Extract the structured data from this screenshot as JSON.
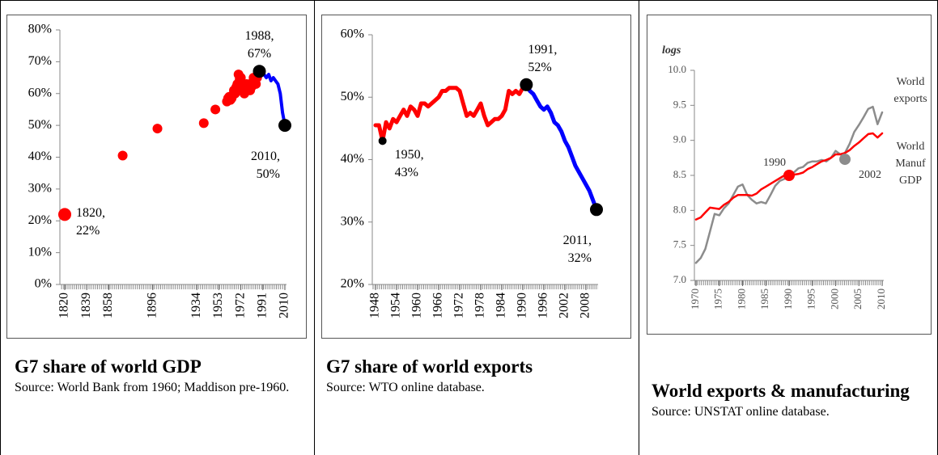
{
  "chart_data": [
    {
      "type": "scatter",
      "title": "G7 share of world GDP",
      "source": "Source: World Bank from 1960; Maddison pre-1960.",
      "xlim": [
        1820,
        2010
      ],
      "xticks": [
        1820,
        1839,
        1858,
        1896,
        1934,
        1953,
        1972,
        1991,
        2010
      ],
      "ylim": [
        0,
        80
      ],
      "yticks": [
        {
          "value": 0,
          "label": "0%"
        },
        {
          "value": 10,
          "label": "10%"
        },
        {
          "value": 20,
          "label": "20%"
        },
        {
          "value": 30,
          "label": "30%"
        },
        {
          "value": 40,
          "label": "40%"
        },
        {
          "value": 50,
          "label": "50%"
        },
        {
          "value": 60,
          "label": "60%"
        },
        {
          "value": 70,
          "label": "70%"
        },
        {
          "value": 80,
          "label": "80%"
        }
      ],
      "series": [
        {
          "type": "points",
          "color": "#ff0000",
          "x": [
            1820,
            1870,
            1900,
            1940,
            1950,
            1960,
            1961,
            1962,
            1963,
            1964,
            1965,
            1966,
            1967,
            1968,
            1969,
            1970,
            1971,
            1972,
            1973,
            1974,
            1975,
            1976,
            1977,
            1978,
            1979,
            1980,
            1981,
            1982,
            1983,
            1984,
            1985,
            1986,
            1987
          ],
          "values": [
            22,
            40.5,
            49,
            50.7,
            55,
            57.5,
            58.5,
            59,
            58,
            58.5,
            59.5,
            61,
            60,
            62,
            63,
            66,
            64.5,
            65,
            62,
            61,
            60,
            62,
            63,
            61,
            62,
            61,
            62,
            63.5,
            65,
            64,
            63,
            65,
            66
          ]
        },
        {
          "type": "line",
          "color": "#0000ff",
          "x": [
            1988,
            1990,
            1992,
            1994,
            1996,
            1998,
            2000,
            2002,
            2004,
            2006,
            2007,
            2008,
            2009,
            2010
          ],
          "values": [
            67,
            66,
            66,
            65,
            66,
            64,
            65,
            64,
            63,
            60,
            57,
            54,
            52,
            50
          ]
        }
      ],
      "highlights": [
        {
          "x": 1820,
          "y": 22,
          "color": "#ff0000",
          "label": "1820,\n22%",
          "label_pos": "right"
        },
        {
          "x": 1988,
          "y": 67,
          "color": "#000000",
          "label": "1988,\n67%",
          "label_pos": "above"
        },
        {
          "x": 2010,
          "y": 50,
          "color": "#000000",
          "label": "2010,\n50%",
          "label_pos": "below-left"
        }
      ]
    },
    {
      "type": "line",
      "title": "G7 share of world exports",
      "source": "Source: WTO online database.",
      "xlim": [
        1948,
        2011
      ],
      "xticks": [
        1948,
        1954,
        1960,
        1966,
        1972,
        1978,
        1984,
        1990,
        1996,
        2002,
        2008
      ],
      "ylim": [
        20,
        60
      ],
      "yticks": [
        {
          "value": 20,
          "label": "20%"
        },
        {
          "value": 30,
          "label": "30%"
        },
        {
          "value": 40,
          "label": "40%"
        },
        {
          "value": 50,
          "label": "50%"
        },
        {
          "value": 60,
          "label": "60%"
        }
      ],
      "series": [
        {
          "type": "line",
          "color": "#ff0000",
          "x": [
            1948,
            1949,
            1950,
            1951,
            1952,
            1953,
            1954,
            1955,
            1956,
            1957,
            1958,
            1959,
            1960,
            1961,
            1962,
            1963,
            1964,
            1965,
            1966,
            1967,
            1968,
            1969,
            1970,
            1971,
            1972,
            1973,
            1974,
            1975,
            1976,
            1977,
            1978,
            1979,
            1980,
            1981,
            1982,
            1983,
            1984,
            1985,
            1986,
            1987,
            1988,
            1989,
            1990,
            1991
          ],
          "values": [
            45.5,
            45.5,
            43,
            46,
            45,
            46.5,
            46,
            47,
            48,
            47,
            48.5,
            48,
            47,
            49,
            49,
            48.5,
            49,
            49.5,
            50,
            51,
            51,
            51.5,
            51.5,
            51.5,
            51,
            49,
            47,
            47.5,
            47,
            48,
            49,
            47,
            45.5,
            46,
            46.5,
            46.5,
            47,
            48,
            51,
            50.5,
            51,
            50.5,
            51.5,
            52
          ]
        },
        {
          "type": "line",
          "color": "#0000ff",
          "x": [
            1991,
            1992,
            1993,
            1994,
            1995,
            1996,
            1997,
            1998,
            1999,
            2000,
            2001,
            2002,
            2003,
            2004,
            2005,
            2006,
            2007,
            2008,
            2009,
            2010,
            2011
          ],
          "values": [
            52,
            51,
            50.5,
            49.5,
            48.5,
            48,
            48.5,
            47.5,
            46,
            45.5,
            44.5,
            43,
            42,
            40.5,
            39,
            38,
            37,
            36,
            35,
            33.5,
            32
          ]
        }
      ],
      "highlights": [
        {
          "x": 1950,
          "y": 43,
          "color": "#000000",
          "label": "1950,\n43%",
          "label_pos": "right-below"
        },
        {
          "x": 1991,
          "y": 52,
          "color": "#000000",
          "label": "1991,\n52%",
          "label_pos": "right-above"
        },
        {
          "x": 2011,
          "y": 32,
          "color": "#000000",
          "label": "2011,\n32%",
          "label_pos": "below-left"
        }
      ]
    },
    {
      "type": "line",
      "title": "World exports & manufacturing",
      "source": "Source: UNSTAT online database.",
      "y_label": "logs",
      "xlim": [
        1970,
        2010
      ],
      "xticks": [
        1970,
        1975,
        1980,
        1985,
        1990,
        1995,
        2000,
        2005,
        2010
      ],
      "ylim": [
        7,
        10
      ],
      "yticks": [
        {
          "value": 7,
          "label": "7.0"
        },
        7.5,
        {
          "value": 8,
          "label": "8.0"
        },
        8.5,
        {
          "value": 9,
          "label": "9.0"
        },
        9.5,
        {
          "value": 10,
          "label": "10.0"
        }
      ],
      "series": [
        {
          "type": "line",
          "name": "World exports",
          "color": "#8c8c8c",
          "x": [
            1970,
            1971,
            1972,
            1973,
            1974,
            1975,
            1976,
            1977,
            1978,
            1979,
            1980,
            1981,
            1982,
            1983,
            1984,
            1985,
            1986,
            1987,
            1988,
            1989,
            1990,
            1991,
            1992,
            1993,
            1994,
            1995,
            1996,
            1997,
            1998,
            1999,
            2000,
            2001,
            2002,
            2003,
            2004,
            2005,
            2006,
            2007,
            2008,
            2009,
            2010
          ],
          "values": [
            7.25,
            7.32,
            7.45,
            7.7,
            7.95,
            7.93,
            8.03,
            8.1,
            8.22,
            8.34,
            8.37,
            8.22,
            8.15,
            8.1,
            8.12,
            8.1,
            8.22,
            8.35,
            8.42,
            8.45,
            8.52,
            8.54,
            8.6,
            8.62,
            8.68,
            8.7,
            8.7,
            8.72,
            8.7,
            8.75,
            8.85,
            8.8,
            8.82,
            8.95,
            9.12,
            9.22,
            9.33,
            9.45,
            9.48,
            9.23,
            9.4
          ]
        },
        {
          "type": "line",
          "name": "World Manuf GDP",
          "color": "#ff0000",
          "x": [
            1970,
            1971,
            1972,
            1973,
            1974,
            1975,
            1976,
            1977,
            1978,
            1979,
            1980,
            1981,
            1982,
            1983,
            1984,
            1985,
            1986,
            1987,
            1988,
            1989,
            1990,
            1991,
            1992,
            1993,
            1994,
            1995,
            1996,
            1997,
            1998,
            1999,
            2000,
            2001,
            2002,
            2003,
            2004,
            2005,
            2006,
            2007,
            2008,
            2009,
            2010
          ],
          "values": [
            7.87,
            7.9,
            7.97,
            8.04,
            8.03,
            8.02,
            8.08,
            8.12,
            8.18,
            8.22,
            8.22,
            8.22,
            8.21,
            8.24,
            8.3,
            8.34,
            8.38,
            8.42,
            8.46,
            8.5,
            8.5,
            8.51,
            8.52,
            8.54,
            8.59,
            8.62,
            8.66,
            8.7,
            8.72,
            8.75,
            8.8,
            8.8,
            8.82,
            8.86,
            8.92,
            8.97,
            9.03,
            9.09,
            9.1,
            9.04,
            9.1
          ]
        }
      ],
      "highlights": [
        {
          "x": 1990,
          "y": 8.5,
          "color": "#ff0000",
          "label": "1990",
          "label_pos": "left-above"
        },
        {
          "x": 2002,
          "y": 8.73,
          "color": "#8c8c8c",
          "label": "2002",
          "label_pos": "right-below"
        }
      ]
    }
  ]
}
